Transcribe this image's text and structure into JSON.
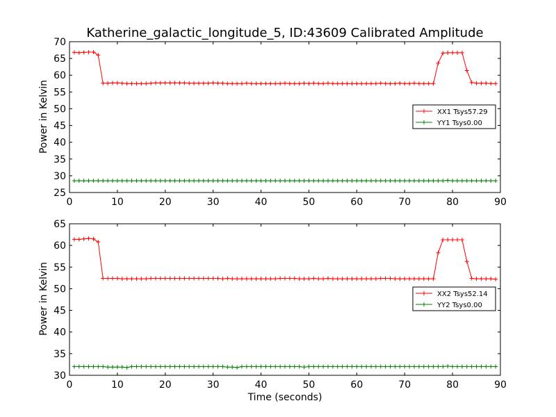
{
  "chart_data": [
    {
      "type": "line",
      "title": "Katherine_galactic_longitude_5, ID:43609 Calibrated Amplitude",
      "xlabel": "",
      "ylabel": "Power in Kelvin",
      "xlim": [
        0,
        90
      ],
      "ylim": [
        25,
        70
      ],
      "xticks": [
        0,
        10,
        20,
        30,
        40,
        50,
        60,
        70,
        80,
        90
      ],
      "yticks": [
        25,
        30,
        35,
        40,
        45,
        50,
        55,
        60,
        65,
        70
      ],
      "legend_position": "center-right",
      "series": [
        {
          "name": "XX1 Tsys57.29",
          "color": "#ff0000",
          "x": [
            1,
            2,
            3,
            4,
            5,
            6,
            7,
            8,
            9,
            10,
            11,
            12,
            13,
            14,
            15,
            16,
            17,
            18,
            19,
            20,
            21,
            22,
            23,
            24,
            25,
            26,
            27,
            28,
            29,
            30,
            31,
            32,
            33,
            34,
            35,
            36,
            37,
            38,
            39,
            40,
            41,
            42,
            43,
            44,
            45,
            46,
            47,
            48,
            49,
            50,
            51,
            52,
            53,
            54,
            55,
            56,
            57,
            58,
            59,
            60,
            61,
            62,
            63,
            64,
            65,
            66,
            67,
            68,
            69,
            70,
            71,
            72,
            73,
            74,
            75,
            76,
            77,
            78,
            79,
            80,
            81,
            82,
            83,
            84,
            85,
            86,
            87,
            88,
            89
          ],
          "y": [
            66.8,
            66.7,
            66.8,
            66.9,
            66.9,
            66.0,
            57.6,
            57.6,
            57.7,
            57.7,
            57.6,
            57.5,
            57.5,
            57.5,
            57.5,
            57.5,
            57.6,
            57.7,
            57.7,
            57.7,
            57.7,
            57.7,
            57.7,
            57.7,
            57.6,
            57.6,
            57.6,
            57.6,
            57.6,
            57.7,
            57.6,
            57.6,
            57.5,
            57.5,
            57.5,
            57.5,
            57.6,
            57.5,
            57.5,
            57.5,
            57.5,
            57.5,
            57.5,
            57.5,
            57.6,
            57.5,
            57.5,
            57.5,
            57.6,
            57.5,
            57.6,
            57.5,
            57.5,
            57.6,
            57.5,
            57.5,
            57.5,
            57.5,
            57.5,
            57.5,
            57.5,
            57.5,
            57.5,
            57.5,
            57.6,
            57.5,
            57.5,
            57.5,
            57.6,
            57.5,
            57.5,
            57.6,
            57.5,
            57.5,
            57.5,
            57.5,
            63.6,
            66.6,
            66.7,
            66.7,
            66.7,
            66.7,
            61.4,
            57.8,
            57.6,
            57.6,
            57.6,
            57.5,
            57.5
          ]
        },
        {
          "name": "YY1 Tsys0.00",
          "color": "#008000",
          "x": [
            1,
            2,
            3,
            4,
            5,
            6,
            7,
            8,
            9,
            10,
            11,
            12,
            13,
            14,
            15,
            16,
            17,
            18,
            19,
            20,
            21,
            22,
            23,
            24,
            25,
            26,
            27,
            28,
            29,
            30,
            31,
            32,
            33,
            34,
            35,
            36,
            37,
            38,
            39,
            40,
            41,
            42,
            43,
            44,
            45,
            46,
            47,
            48,
            49,
            50,
            51,
            52,
            53,
            54,
            55,
            56,
            57,
            58,
            59,
            60,
            61,
            62,
            63,
            64,
            65,
            66,
            67,
            68,
            69,
            70,
            71,
            72,
            73,
            74,
            75,
            76,
            77,
            78,
            79,
            80,
            81,
            82,
            83,
            84,
            85,
            86,
            87,
            88,
            89
          ],
          "y": [
            28.5,
            28.5,
            28.5,
            28.5,
            28.5,
            28.5,
            28.5,
            28.5,
            28.5,
            28.5,
            28.5,
            28.5,
            28.5,
            28.5,
            28.5,
            28.5,
            28.5,
            28.5,
            28.5,
            28.5,
            28.5,
            28.5,
            28.5,
            28.5,
            28.5,
            28.5,
            28.5,
            28.5,
            28.5,
            28.5,
            28.5,
            28.5,
            28.5,
            28.5,
            28.5,
            28.5,
            28.5,
            28.5,
            28.5,
            28.5,
            28.5,
            28.5,
            28.5,
            28.5,
            28.5,
            28.5,
            28.5,
            28.5,
            28.5,
            28.5,
            28.5,
            28.5,
            28.5,
            28.5,
            28.5,
            28.5,
            28.5,
            28.5,
            28.5,
            28.5,
            28.5,
            28.5,
            28.5,
            28.5,
            28.5,
            28.5,
            28.5,
            28.5,
            28.5,
            28.5,
            28.5,
            28.5,
            28.5,
            28.5,
            28.5,
            28.5,
            28.5,
            28.5,
            28.6,
            28.5,
            28.5,
            28.5,
            28.5,
            28.5,
            28.5,
            28.5,
            28.5,
            28.5,
            28.5
          ]
        }
      ]
    },
    {
      "type": "line",
      "title": "",
      "xlabel": "Time (seconds)",
      "ylabel": "Power in Kelvin",
      "xlim": [
        0,
        90
      ],
      "ylim": [
        30,
        65
      ],
      "xticks": [
        0,
        10,
        20,
        30,
        40,
        50,
        60,
        70,
        80,
        90
      ],
      "yticks": [
        30,
        35,
        40,
        45,
        50,
        55,
        60,
        65
      ],
      "legend_position": "center-right",
      "series": [
        {
          "name": "XX2 Tsys52.14",
          "color": "#ff0000",
          "x": [
            1,
            2,
            3,
            4,
            5,
            6,
            7,
            8,
            9,
            10,
            11,
            12,
            13,
            14,
            15,
            16,
            17,
            18,
            19,
            20,
            21,
            22,
            23,
            24,
            25,
            26,
            27,
            28,
            29,
            30,
            31,
            32,
            33,
            34,
            35,
            36,
            37,
            38,
            39,
            40,
            41,
            42,
            43,
            44,
            45,
            46,
            47,
            48,
            49,
            50,
            51,
            52,
            53,
            54,
            55,
            56,
            57,
            58,
            59,
            60,
            61,
            62,
            63,
            64,
            65,
            66,
            67,
            68,
            69,
            70,
            71,
            72,
            73,
            74,
            75,
            76,
            77,
            78,
            79,
            80,
            81,
            82,
            83,
            84,
            85,
            86,
            87,
            88,
            89
          ],
          "y": [
            61.4,
            61.4,
            61.5,
            61.6,
            61.5,
            60.8,
            52.4,
            52.4,
            52.4,
            52.4,
            52.3,
            52.3,
            52.3,
            52.3,
            52.3,
            52.3,
            52.4,
            52.4,
            52.4,
            52.4,
            52.4,
            52.4,
            52.4,
            52.4,
            52.4,
            52.4,
            52.4,
            52.4,
            52.4,
            52.4,
            52.4,
            52.3,
            52.4,
            52.3,
            52.3,
            52.3,
            52.3,
            52.3,
            52.3,
            52.3,
            52.3,
            52.3,
            52.3,
            52.4,
            52.4,
            52.4,
            52.4,
            52.3,
            52.3,
            52.3,
            52.4,
            52.3,
            52.3,
            52.4,
            52.3,
            52.3,
            52.3,
            52.3,
            52.3,
            52.3,
            52.3,
            52.3,
            52.3,
            52.3,
            52.4,
            52.4,
            52.4,
            52.3,
            52.3,
            52.3,
            52.3,
            52.3,
            52.3,
            52.3,
            52.3,
            52.3,
            58.3,
            61.3,
            61.3,
            61.3,
            61.3,
            61.3,
            56.3,
            52.4,
            52.3,
            52.3,
            52.3,
            52.3,
            52.2
          ]
        },
        {
          "name": "YY2 Tsys0.00",
          "color": "#008000",
          "x": [
            1,
            2,
            3,
            4,
            5,
            6,
            7,
            8,
            9,
            10,
            11,
            12,
            13,
            14,
            15,
            16,
            17,
            18,
            19,
            20,
            21,
            22,
            23,
            24,
            25,
            26,
            27,
            28,
            29,
            30,
            31,
            32,
            33,
            34,
            35,
            36,
            37,
            38,
            39,
            40,
            41,
            42,
            43,
            44,
            45,
            46,
            47,
            48,
            49,
            50,
            51,
            52,
            53,
            54,
            55,
            56,
            57,
            58,
            59,
            60,
            61,
            62,
            63,
            64,
            65,
            66,
            67,
            68,
            69,
            70,
            71,
            72,
            73,
            74,
            75,
            76,
            77,
            78,
            79,
            80,
            81,
            82,
            83,
            84,
            85,
            86,
            87,
            88,
            89
          ],
          "y": [
            32.0,
            32.0,
            32.0,
            32.0,
            32.0,
            32.0,
            32.0,
            31.9,
            31.9,
            31.9,
            31.9,
            31.8,
            32.0,
            32.0,
            32.0,
            32.0,
            32.0,
            32.0,
            32.0,
            32.0,
            32.0,
            32.0,
            32.0,
            32.0,
            32.0,
            32.0,
            32.0,
            32.0,
            32.0,
            32.0,
            32.0,
            32.0,
            31.9,
            31.9,
            31.8,
            32.0,
            32.0,
            32.0,
            32.0,
            32.0,
            32.0,
            32.0,
            32.0,
            32.0,
            32.0,
            32.0,
            32.0,
            32.0,
            31.9,
            32.0,
            32.0,
            32.0,
            32.0,
            32.0,
            32.0,
            32.0,
            32.0,
            32.0,
            32.0,
            32.0,
            32.0,
            32.0,
            32.0,
            32.0,
            32.0,
            32.0,
            32.0,
            32.0,
            32.0,
            32.0,
            32.0,
            32.0,
            32.0,
            32.0,
            32.0,
            32.0,
            32.0,
            32.0,
            32.1,
            32.0,
            32.0,
            32.0,
            32.0,
            32.0,
            32.0,
            32.0,
            32.0,
            32.0,
            32.0
          ]
        }
      ]
    }
  ]
}
